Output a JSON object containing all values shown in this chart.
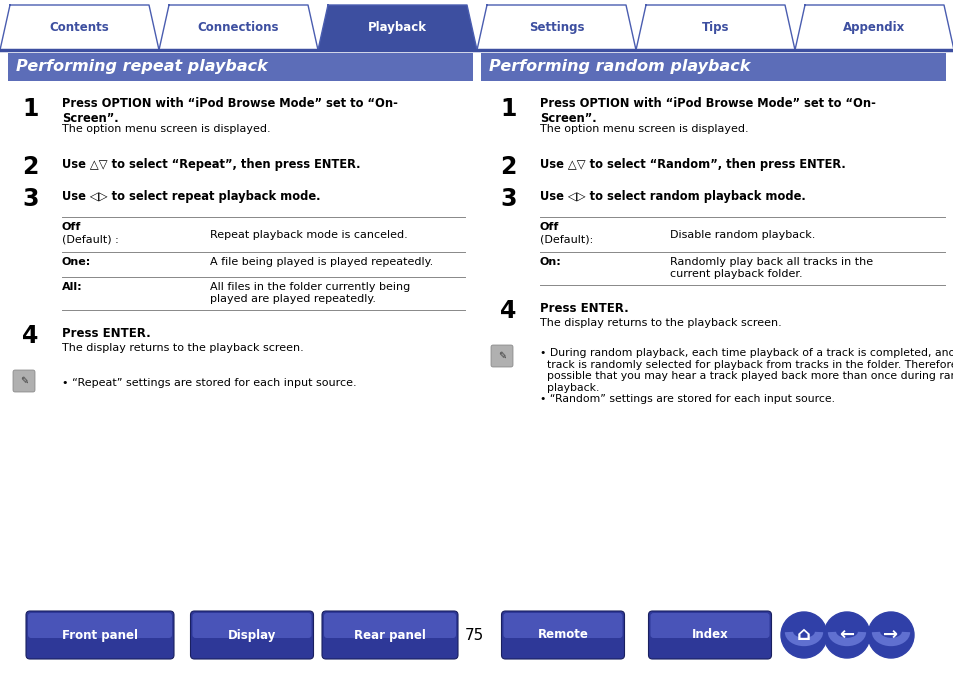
{
  "tab_labels": [
    "Contents",
    "Connections",
    "Playback",
    "Settings",
    "Tips",
    "Appendix"
  ],
  "active_tab": 2,
  "tab_color_active": "#3d4fa0",
  "tab_color_inactive": "#ffffff",
  "tab_border_color": "#4a5db0",
  "tab_text_active": "#ffffff",
  "tab_text_inactive": "#3d4fa0",
  "header_color": "#5c6db8",
  "left_title": "Performing repeat playback",
  "right_title": "Performing random playback",
  "bg_color": "#ffffff",
  "divider_color": "#3d4fa0",
  "bottom_buttons": [
    "Front panel",
    "Display",
    "Rear panel",
    "Remote",
    "Index"
  ],
  "page_number": "75",
  "button_color_dark": "#3a3fa8",
  "button_color_light": "#7070d0"
}
